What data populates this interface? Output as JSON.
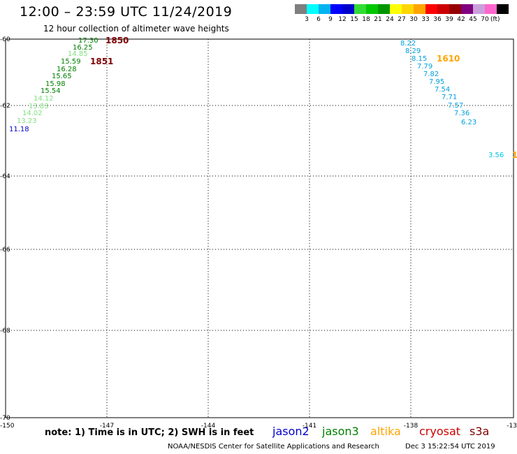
{
  "header": {
    "title": "12:00 – 23:59 UTC 11/24/2019",
    "subtitle": "12 hour collection of altimeter wave heights"
  },
  "legend": {
    "colors": [
      "#7f7f7f",
      "#00ffff",
      "#00b4f0",
      "#0000ff",
      "#0000cd",
      "#32dc32",
      "#00c800",
      "#009600",
      "#ffff00",
      "#ffd700",
      "#ffa500",
      "#ff0000",
      "#cd0000",
      "#960000",
      "#800080",
      "#c9a0dc",
      "#ff66cc",
      "#000000"
    ],
    "labels": [
      "3",
      "6",
      "9",
      "12",
      "15",
      "18",
      "21",
      "24",
      "27",
      "30",
      "33",
      "36",
      "39",
      "42",
      "45",
      "70"
    ],
    "unit": "(ft)"
  },
  "axes": {
    "lat_labels": [
      "-60",
      "-62",
      "-64",
      "-66",
      "-68",
      "-70"
    ],
    "lon_labels": [
      "-150",
      "-147",
      "-144",
      "-141",
      "-138",
      "-13"
    ]
  },
  "tracks": [
    {
      "color": "#008000",
      "values": [
        "17.30",
        "16.25"
      ]
    },
    {
      "color": "#80e080",
      "values": [
        "14.85"
      ]
    },
    {
      "color": "#008000",
      "values": [
        "15.59",
        "16.28",
        "15.65",
        "15.98",
        "15.54"
      ]
    },
    {
      "color": "#80e080",
      "values": [
        "14.12",
        "13.83",
        "14.02",
        "13.23"
      ]
    },
    {
      "color": "#0000cc",
      "values": [
        "11.18"
      ]
    },
    {
      "color": "#00a0dc",
      "values": [
        "8.22",
        "8.29",
        "8.15",
        "7.79",
        "7.82",
        "7.95",
        "7.54",
        "7.71",
        "7.57",
        "7.36",
        "6.23"
      ]
    },
    {
      "color": "#00c8e6",
      "values": [
        "3.56"
      ]
    }
  ],
  "time_labels": [
    {
      "text": "1850",
      "color": "#800000"
    },
    {
      "text": "1851",
      "color": "#800000"
    },
    {
      "text": "1610",
      "color": "#ffa500"
    },
    {
      "text": "1",
      "color": "#ffa500"
    }
  ],
  "footer": {
    "note": "note: 1) Time is in UTC; 2) SWH is in feet",
    "satellites": [
      {
        "name": "jason2",
        "color": "#0000cc"
      },
      {
        "name": "jason3",
        "color": "#008000"
      },
      {
        "name": "altika",
        "color": "#ffa500"
      },
      {
        "name": "cryosat",
        "color": "#cc0000"
      },
      {
        "name": "s3a",
        "color": "#800000"
      }
    ],
    "credit": "NOAA/NESDIS Center for Satellite Applications and Research",
    "timestamp": "Dec  3 15:22:54 UTC 2019"
  }
}
